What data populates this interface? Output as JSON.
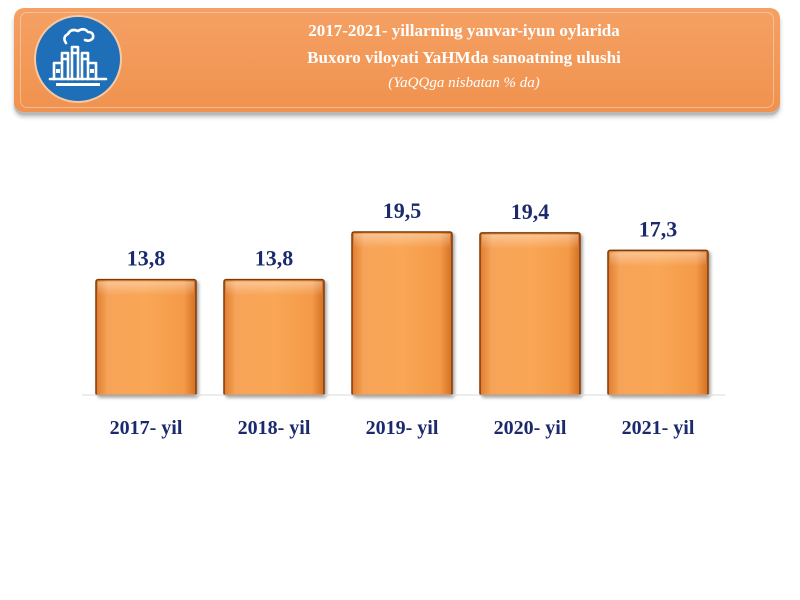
{
  "header": {
    "title_line1": "2017-2021- yillarning yanvar-iyun oylarida",
    "title_line2": "Buxoro viloyati YaHMda sanoatning ulushi",
    "subtitle": "(YaQQga nisbatan % da)",
    "icon": "factory-icon"
  },
  "colors": {
    "banner": "#f39a5a",
    "bar_fill": "#f59a48",
    "bar_border": "#7a3a0a",
    "label_text": "#1a2a6c",
    "icon_circle": "#1f6fb8"
  },
  "chart_data": {
    "type": "bar",
    "title": "2017-2021- yillarning yanvar-iyun oylarida Buxoro viloyati YaHMda sanoatning ulushi",
    "subtitle": "(YaQQga nisbatan % da)",
    "categories": [
      "2017- yil",
      "2018- yil",
      "2019- yil",
      "2020- yil",
      "2021- yil"
    ],
    "values": [
      13.8,
      13.8,
      19.5,
      19.4,
      17.3
    ],
    "value_labels": [
      "13,8",
      "13,8",
      "19,5",
      "19,4",
      "17,3"
    ],
    "xlabel": "",
    "ylabel": "",
    "ylim": [
      0,
      19.5
    ],
    "grid": false,
    "legend": "none"
  }
}
